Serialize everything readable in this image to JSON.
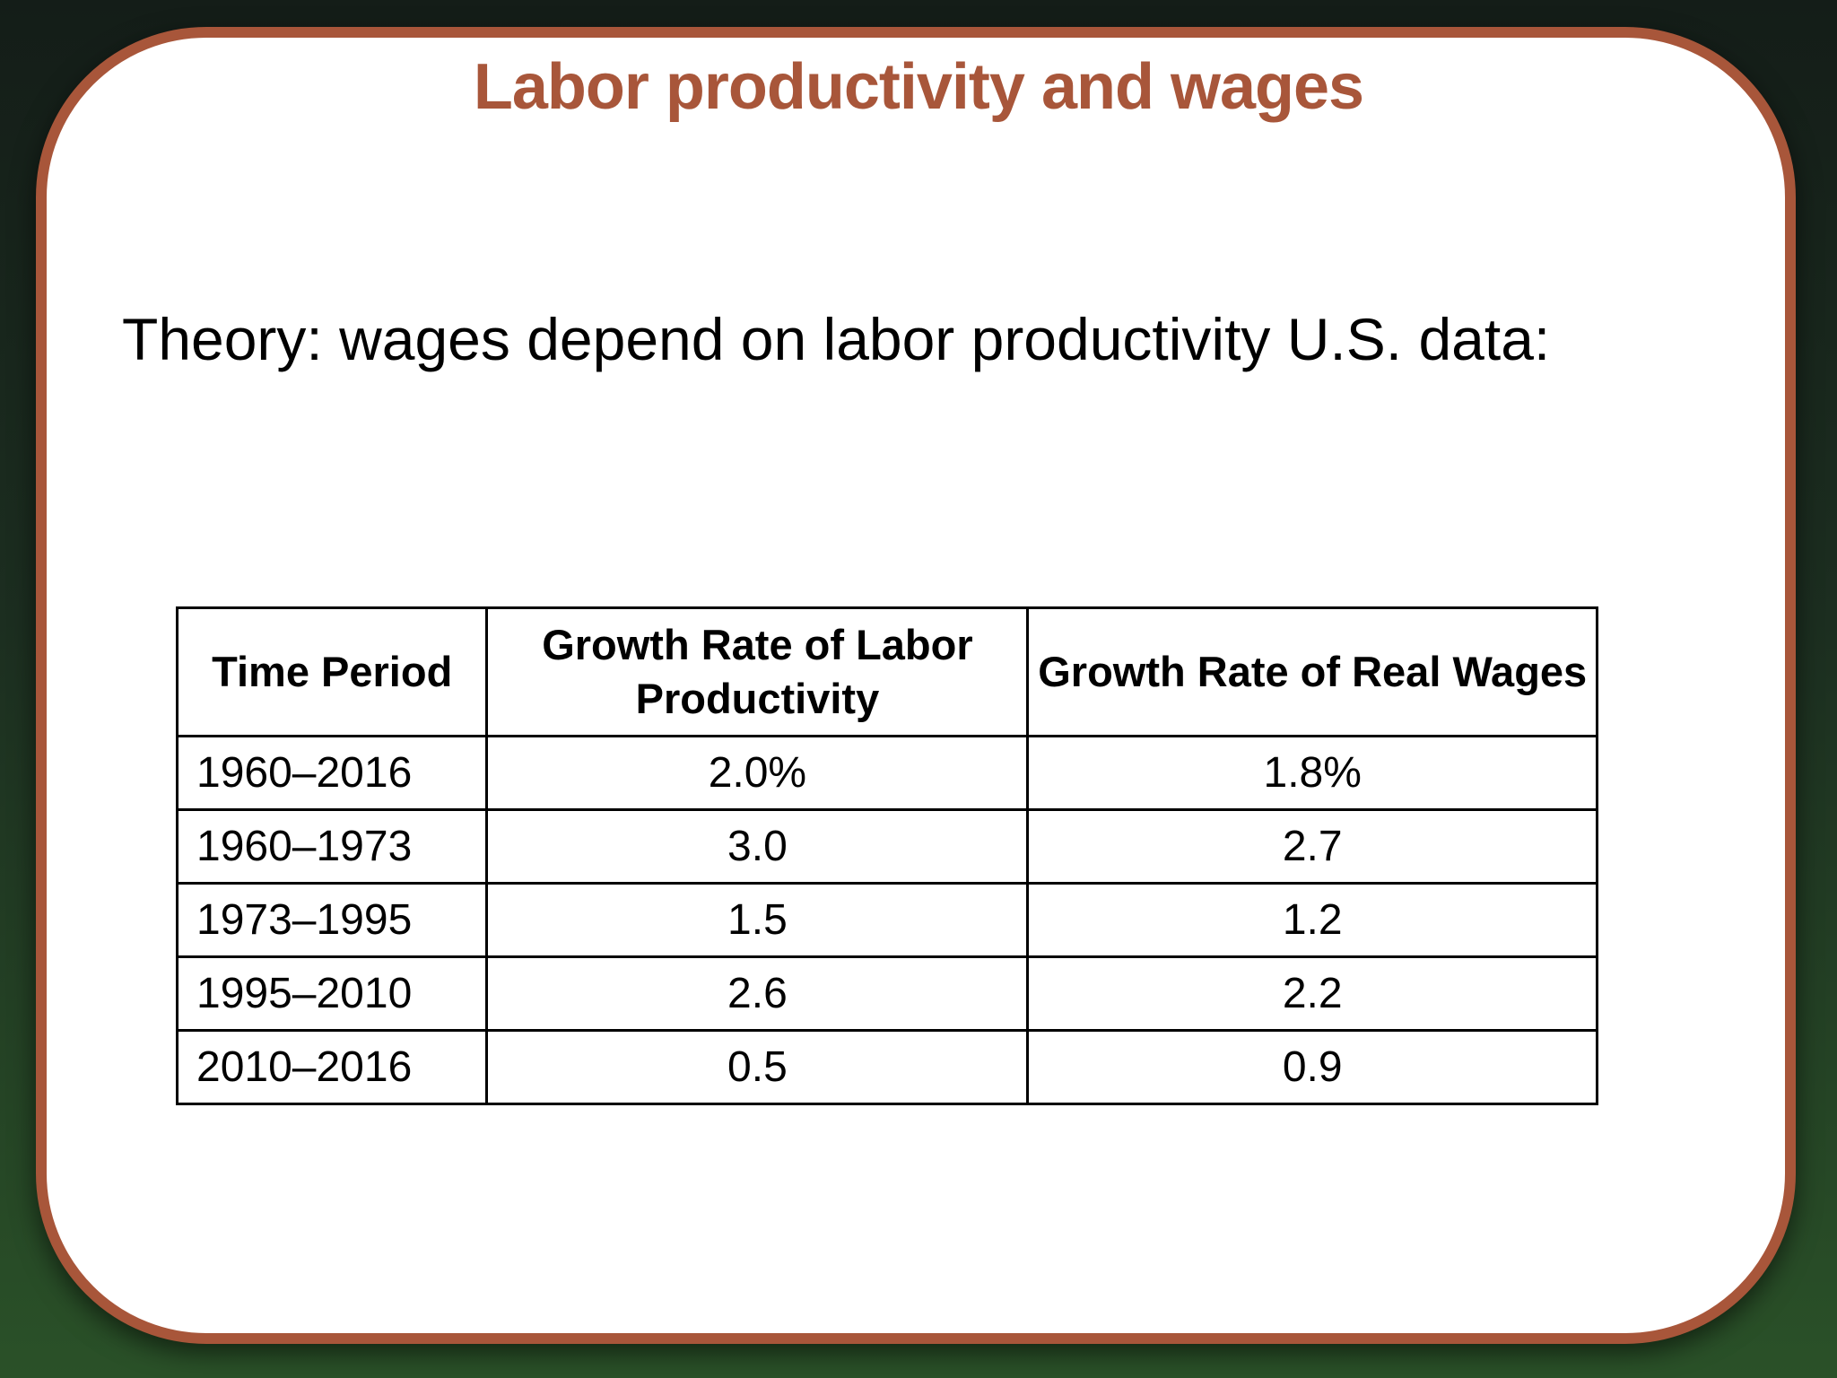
{
  "slide": {
    "title": "Labor productivity and wages",
    "subtitle": "Theory: wages depend on labor productivity U.S. data:"
  },
  "table": {
    "headers": {
      "period": "Time Period",
      "productivity": "Growth Rate of Labor Productivity",
      "wages": "Growth Rate of Real Wages"
    },
    "rows": [
      {
        "period": "1960–2016",
        "productivity": "2.0%",
        "wages": "1.8%"
      },
      {
        "period": "1960–1973",
        "productivity": "3.0",
        "wages": "2.7"
      },
      {
        "period": "1973–1995",
        "productivity": "1.5",
        "wages": "1.2"
      },
      {
        "period": "1995–2010",
        "productivity": "2.6",
        "wages": "2.2"
      },
      {
        "period": "2010–2016",
        "productivity": "0.5",
        "wages": "0.9"
      }
    ]
  },
  "colors": {
    "accent": "#a8563a",
    "background_top": "#141d18",
    "background_bottom": "#2a5128"
  }
}
